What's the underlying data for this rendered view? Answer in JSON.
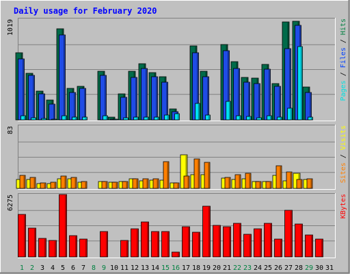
{
  "chart_data": {
    "type": "bar",
    "title": "Daily usage for February 2020",
    "categories": [
      "1",
      "2",
      "3",
      "4",
      "5",
      "6",
      "7",
      "8",
      "9",
      "10",
      "11",
      "12",
      "13",
      "14",
      "15",
      "16",
      "17",
      "18",
      "19",
      "20",
      "21",
      "22",
      "23",
      "24",
      "25",
      "26",
      "27",
      "28",
      "29",
      "30",
      "31"
    ],
    "weekend_days": [
      1,
      2,
      8,
      9,
      15,
      16,
      22,
      23,
      29
    ],
    "panels": [
      {
        "name": "hits-files-pages",
        "ymax": 1019,
        "ymax_label": "1019",
        "legend": [
          {
            "text": "Pages",
            "color": "#00e0e0"
          },
          {
            "text": " / ",
            "color": "#000000"
          },
          {
            "text": "Files",
            "color": "#0040ff"
          },
          {
            "text": " / ",
            "color": "#000000"
          },
          {
            "text": "Hits",
            "color": "#008040"
          }
        ],
        "series": [
          {
            "name": "Hits",
            "color": "#006b4a",
            "values": [
              680,
              470,
              290,
              200,
              920,
              320,
              340,
              0,
              490,
              25,
              260,
              490,
              570,
              480,
              440,
              110,
              0,
              750,
              490,
              0,
              760,
              590,
              430,
              420,
              560,
              370,
              990,
              1000,
              330,
              0,
              0
            ]
          },
          {
            "name": "Files",
            "color": "#1f4ce6",
            "values": [
              620,
              450,
              260,
              160,
              860,
              280,
              320,
              0,
              450,
              10,
              230,
              430,
              520,
              440,
              380,
              80,
              0,
              680,
              440,
              0,
              700,
              520,
              380,
              370,
              510,
              340,
              720,
              960,
              280,
              0,
              0
            ]
          },
          {
            "name": "Pages",
            "color": "#00e0f0",
            "values": [
              40,
              20,
              15,
              10,
              40,
              30,
              30,
              0,
              40,
              5,
              20,
              30,
              30,
              30,
              50,
              60,
              0,
              165,
              50,
              0,
              185,
              40,
              35,
              20,
              40,
              30,
              120,
              740,
              30,
              0,
              0
            ]
          }
        ]
      },
      {
        "name": "visits-sites",
        "ymax": 83,
        "ymax_label": "83",
        "legend": [
          {
            "text": "Sites",
            "color": "#ff8000"
          },
          {
            "text": " / ",
            "color": "#000000"
          },
          {
            "text": "Visits",
            "color": "#ffff00"
          }
        ],
        "series": [
          {
            "name": "Visits",
            "color": "#ffff00",
            "values": [
              12,
              12,
              6,
              6,
              13,
              13,
              8,
              0,
              9,
              8,
              9,
              13,
              10,
              11,
              11,
              7,
              45,
              18,
              18,
              0,
              14,
              12,
              13,
              9,
              9,
              17,
              10,
              20,
              12,
              0,
              0
            ]
          },
          {
            "name": "Sites",
            "color": "#ff8000",
            "values": [
              17,
              15,
              7,
              8,
              16,
              15,
              9,
              0,
              9,
              8,
              9,
              13,
              13,
              13,
              36,
              7,
              16,
              39,
              35,
              0,
              15,
              18,
              20,
              9,
              9,
              30,
              22,
              12,
              13,
              0,
              0
            ]
          }
        ]
      },
      {
        "name": "kbytes",
        "ymax": 6275,
        "ymax_label": "6275",
        "legend": [
          {
            "text": "KBytes",
            "color": "#ff0000"
          }
        ],
        "series": [
          {
            "name": "KBytes",
            "color": "#ff0000",
            "values": [
              4250,
              2900,
              1860,
              1640,
              6275,
              2160,
              1820,
              0,
              2520,
              0,
              1660,
              2840,
              3490,
              2560,
              2530,
              460,
              3000,
              2500,
              5120,
              3180,
              3000,
              3400,
              2270,
              2860,
              3380,
              1790,
              4720,
              3320,
              2200,
              1800,
              0
            ]
          }
        ]
      }
    ]
  }
}
